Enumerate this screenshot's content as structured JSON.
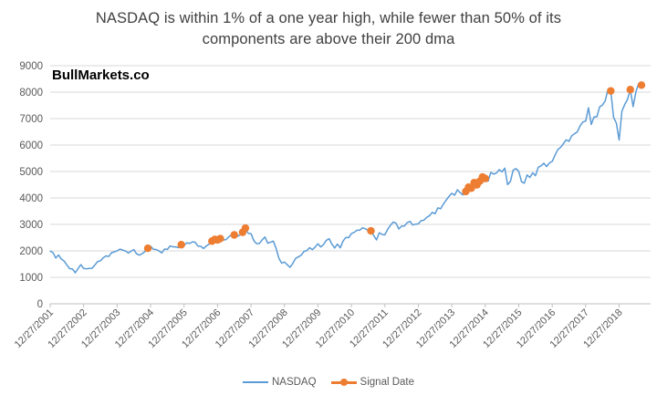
{
  "title": "NASDAQ is within 1% of a one year high, while fewer than 50% of its components are above their 200 dma",
  "title_lines": [
    "NASDAQ is within 1% of a one year high, while fewer than 50% of its",
    "components are above their 200 dma"
  ],
  "watermark": "BullMarkets.co",
  "legend": {
    "nasdaq_label": "NASDAQ",
    "signal_label": "Signal Date"
  },
  "colors": {
    "nasdaq_line": "#5B9BD5",
    "signal_marker": "#ED7D31",
    "gridline": "#D9D9D9",
    "axis_line": "#BFBFBF",
    "axis_text": "#595959",
    "title_text": "#404040"
  },
  "chart_data": {
    "type": "line",
    "title": "NASDAQ is within 1% of a one year high, while fewer than 50% of its components are above their 200 dma",
    "xlabel": "",
    "ylabel": "",
    "x_unit": "decimal_year",
    "xlim": [
      2001.99,
      2019.93
    ],
    "ylim": [
      0,
      9000
    ],
    "grid": true,
    "legend_position": "bottom",
    "y_ticks": [
      0,
      1000,
      2000,
      3000,
      4000,
      5000,
      6000,
      7000,
      8000,
      9000
    ],
    "x_tick_labels": [
      "12/27/2001",
      "12/27/2002",
      "12/27/2003",
      "12/27/2004",
      "12/27/2005",
      "12/27/2006",
      "12/27/2007",
      "12/27/2008",
      "12/27/2009",
      "12/27/2010",
      "12/27/2011",
      "12/27/2012",
      "12/27/2013",
      "12/27/2014",
      "12/27/2015",
      "12/27/2016",
      "12/27/2017",
      "12/27/2018"
    ],
    "x_axis": {
      "first_tick": 2001.99,
      "tick_interval_years": 1
    },
    "series": [
      {
        "name": "NASDAQ",
        "type": "line",
        "start": 2001.99,
        "step_years": 0.0833333,
        "values": [
          1987,
          1934,
          1731,
          1845,
          1688,
          1616,
          1463,
          1328,
          1315,
          1172,
          1330,
          1479,
          1336,
          1321,
          1338,
          1341,
          1464,
          1596,
          1623,
          1735,
          1810,
          1787,
          1932,
          1960,
          2003,
          2066,
          2030,
          1994,
          1920,
          1987,
          2048,
          1887,
          1838,
          1897,
          1975,
          2097,
          2175,
          2062,
          2052,
          1999,
          1922,
          2068,
          2057,
          2185,
          2152,
          2152,
          2120,
          2233,
          2205,
          2306,
          2281,
          2340,
          2323,
          2179,
          2172,
          2091,
          2184,
          2258,
          2367,
          2432,
          2415,
          2464,
          2416,
          2422,
          2525,
          2605,
          2603,
          2546,
          2596,
          2702,
          2859,
          2661,
          2652,
          2390,
          2271,
          2279,
          2413,
          2523,
          2293,
          2326,
          2368,
          2092,
          1721,
          1536,
          1577,
          1476,
          1378,
          1529,
          1717,
          1774,
          1835,
          1979,
          2009,
          2122,
          2045,
          2145,
          2269,
          2147,
          2238,
          2398,
          2461,
          2257,
          2109,
          2255,
          2114,
          2369,
          2507,
          2498,
          2653,
          2700,
          2782,
          2781,
          2874,
          2835,
          2774,
          2756,
          2579,
          2415,
          2684,
          2620,
          2605,
          2814,
          2967,
          3092,
          3046,
          2827,
          2935,
          2940,
          3067,
          3116,
          2977,
          3010,
          3020,
          3142,
          3160,
          3268,
          3329,
          3456,
          3403,
          3626,
          3590,
          3771,
          3920,
          4060,
          4177,
          4104,
          4308,
          4199,
          4115,
          4243,
          4408,
          4370,
          4580,
          4493,
          4631,
          4792,
          4736,
          4635,
          4964,
          4901,
          4941,
          5070,
          4987,
          5128,
          4506,
          4620,
          5054,
          5109,
          5007,
          4614,
          4558,
          4870,
          4775,
          4948,
          4843,
          5162,
          5213,
          5312,
          5189,
          5324,
          5383,
          5615,
          5825,
          5912,
          6048,
          6199,
          6140,
          6348,
          6429,
          6496,
          6728,
          6874,
          6903,
          7411,
          6777,
          7063,
          7066,
          7442,
          7510,
          7672,
          8110,
          8046,
          7050,
          6830,
          6190,
          7282,
          7533,
          7729,
          8095,
          7453,
          8006,
          8330,
          8264
        ]
      },
      {
        "name": "Signal Date",
        "type": "scatter",
        "points": [
          [
            2004.907,
            2097
          ],
          [
            2005.907,
            2233
          ],
          [
            2006.823,
            2367
          ],
          [
            2006.907,
            2432
          ],
          [
            2006.99,
            2415
          ],
          [
            2007.073,
            2464
          ],
          [
            2007.49,
            2603
          ],
          [
            2007.74,
            2702
          ],
          [
            2007.823,
            2859
          ],
          [
            2011.573,
            2756
          ],
          [
            2014.407,
            4243
          ],
          [
            2014.49,
            4408
          ],
          [
            2014.573,
            4370
          ],
          [
            2014.657,
            4580
          ],
          [
            2014.74,
            4493
          ],
          [
            2014.823,
            4631
          ],
          [
            2014.907,
            4792
          ],
          [
            2014.99,
            4736
          ],
          [
            2018.74,
            8046
          ],
          [
            2019.323,
            8095
          ],
          [
            2019.657,
            8264
          ]
        ]
      }
    ]
  }
}
